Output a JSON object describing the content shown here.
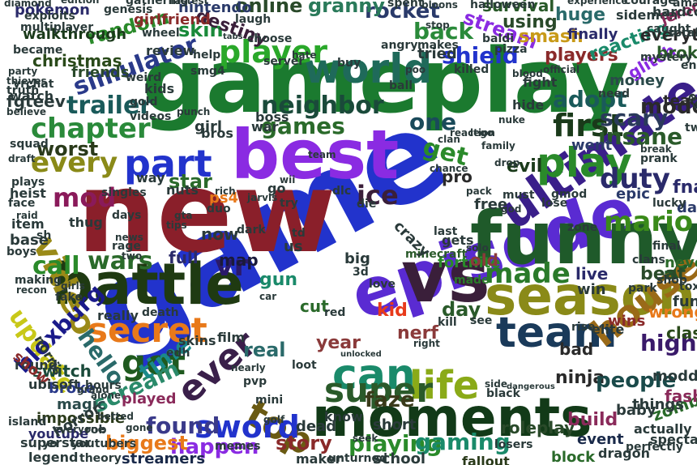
{
  "palette": {
    "background": "#ffffff",
    "green": "#1b7a2f",
    "dark_green": "#1f4d1a",
    "blue": "#2233cc",
    "purple": "#8a2be2",
    "maroon": "#8a1f2a",
    "dark_purple": "#3a1f4a",
    "orange": "#e8791a",
    "olive": "#9a8a18",
    "teal": "#1a6a7a",
    "indigo": "#3a1f8a"
  },
  "words": [
    {
      "text": "game",
      "color": "#2233cc"
    },
    {
      "text": "new",
      "color": "#8a1f2a"
    },
    {
      "text": "gameplay",
      "color": "#1b7a2f"
    },
    {
      "text": "best",
      "color": "#8a2be2"
    },
    {
      "text": "episode",
      "color": "#5a2bd2"
    },
    {
      "text": "vs",
      "color": "#3a1f3a"
    },
    {
      "text": "funny",
      "color": "#1f5a2a"
    },
    {
      "text": "battle",
      "color": "#1f3a12"
    },
    {
      "text": "moments",
      "color": "#123a18"
    },
    {
      "text": "season",
      "color": "#8a8a18"
    },
    {
      "text": "ultimate",
      "color": "#3a1f8a"
    },
    {
      "text": "world",
      "color": "#1f6a5a"
    },
    {
      "text": "part",
      "color": "#2233cc"
    },
    {
      "text": "team",
      "color": "#1a3a5a"
    },
    {
      "text": "secret",
      "color": "#e8791a"
    },
    {
      "text": "player",
      "color": "#2aa82a"
    },
    {
      "text": "play",
      "color": "#2a8a2a"
    },
    {
      "text": "video",
      "color": "#9a8a18"
    },
    {
      "text": "house",
      "color": "#9a6a18"
    },
    {
      "text": "got",
      "color": "#1f5a1f"
    },
    {
      "text": "top",
      "color": "#6a5a12"
    },
    {
      "text": "can",
      "color": "#1a8a6a"
    },
    {
      "text": "life",
      "color": "#8aaa18"
    },
    {
      "text": "ever",
      "color": "#3a1f4a"
    },
    {
      "text": "super",
      "color": "#2a5a2a"
    },
    {
      "text": "made",
      "color": "#2a7a2a"
    },
    {
      "text": "first",
      "color": "#1a3a1a"
    },
    {
      "text": "mod",
      "color": "#8a1a5a"
    },
    {
      "text": "neighbor",
      "color": "#1a4a3a"
    },
    {
      "text": "chapter",
      "color": "#2a8a3a"
    },
    {
      "text": "games",
      "color": "#2a6a2a"
    },
    {
      "text": "sword",
      "color": "#2233cc"
    },
    {
      "text": "trailer",
      "color": "#1a5a5a"
    },
    {
      "text": "simulator",
      "color": "#2a3a8a"
    },
    {
      "text": "shield",
      "color": "#2233cc"
    },
    {
      "text": "every",
      "color": "#8a8a18"
    },
    {
      "text": "adopt",
      "color": "#1a5a5a"
    },
    {
      "text": "mario",
      "color": "#3a8a1a"
    },
    {
      "text": "playing",
      "color": "#2a8a2a"
    },
    {
      "text": "gaming",
      "color": "#1a8a6a"
    },
    {
      "text": "update",
      "color": "#c8c818"
    },
    {
      "text": "call",
      "color": "#2a8a2a"
    },
    {
      "text": "hello",
      "color": "#2a6a6a"
    },
    {
      "text": "found",
      "color": "#3a3a8a"
    },
    {
      "text": "scream",
      "color": "#2a8a6a"
    },
    {
      "text": "time",
      "color": "#1a8a8a"
    },
    {
      "text": "story",
      "color": "#8a2a2a"
    },
    {
      "text": "bloxburg",
      "color": "#1a1a8a"
    },
    {
      "text": "wars",
      "color": "#2a6a2a"
    },
    {
      "text": "worst",
      "color": "#2a3a1a"
    },
    {
      "text": "duty",
      "color": "#2a2a6a"
    },
    {
      "text": "insane",
      "color": "#2a5a2a"
    },
    {
      "text": "scary",
      "color": "#2a3a5a"
    },
    {
      "text": "ice",
      "color": "#3a1f3a"
    },
    {
      "text": "get",
      "color": "#2a8a2a"
    },
    {
      "text": "back",
      "color": "#2a8a3a"
    },
    {
      "text": "rocket",
      "color": "#2a3a6a"
    },
    {
      "text": "one",
      "color": "#1a4a5a"
    },
    {
      "text": "online",
      "color": "#2a4a2a"
    },
    {
      "text": "granny",
      "color": "#2a7a5a"
    },
    {
      "text": "stream",
      "color": "#8a2be2"
    },
    {
      "text": "random",
      "color": "#2a8a2a"
    },
    {
      "text": "christmas",
      "color": "#2a4a1a"
    },
    {
      "text": "skin",
      "color": "#1a8a3a"
    },
    {
      "text": "destiny",
      "color": "#3a1f3a"
    },
    {
      "text": "smash",
      "color": "#c89a18"
    },
    {
      "text": "players",
      "color": "#8a2a2a"
    },
    {
      "text": "mode",
      "color": "#2a2a2a"
    },
    {
      "text": "using",
      "color": "#2a4a2a"
    },
    {
      "text": "survival",
      "color": "#2a5a2a"
    },
    {
      "text": "huge",
      "color": "#2a6a6a"
    },
    {
      "text": "nerf",
      "color": "#8a3a3a"
    },
    {
      "text": "kid",
      "color": "#e83a1a"
    },
    {
      "text": "day",
      "color": "#2a5a2a"
    },
    {
      "text": "high",
      "color": "#3a1a6a"
    },
    {
      "text": "ninja",
      "color": "#2a2a2a"
    },
    {
      "text": "people",
      "color": "#1a4a4a"
    },
    {
      "text": "faze",
      "color": "#3a3a1a"
    },
    {
      "text": "roleplay",
      "color": "#2a4a2a"
    },
    {
      "text": "happen",
      "color": "#8a2be2"
    },
    {
      "text": "biggest",
      "color": "#e8791a"
    },
    {
      "text": "fortnite",
      "color": "#2a8a2a"
    },
    {
      "text": "star",
      "color": "#2a6a2a"
    },
    {
      "text": "vr",
      "color": "#2a1a6a"
    },
    {
      "text": "real",
      "color": "#2a6a6a"
    },
    {
      "text": "live",
      "color": "#2a2a6a"
    },
    {
      "text": "beat",
      "color": "#2a4a2a"
    },
    {
      "text": "clash",
      "color": "#2a4a1a"
    },
    {
      "text": "wins",
      "color": "#8a2a2a"
    },
    {
      "text": "evil",
      "color": "#1a3a1a"
    },
    {
      "text": "went",
      "color": "#2a3a6a"
    },
    {
      "text": "map",
      "color": "#1a1a3a"
    },
    {
      "text": "gun",
      "color": "#1a8a6a"
    },
    {
      "text": "cut",
      "color": "#2a6a2a"
    },
    {
      "text": "year",
      "color": "#8a3a3a"
    },
    {
      "text": "bad",
      "color": "#2a2a2a"
    },
    {
      "text": "full",
      "color": "#2a2a6a"
    },
    {
      "text": "now",
      "color": "#2a3a3a"
    },
    {
      "text": "build",
      "color": "#8a2a5a"
    },
    {
      "text": "event",
      "color": "#1a2a4a"
    },
    {
      "text": "block",
      "color": "#2a6a2a"
    },
    {
      "text": "school",
      "color": "#2a3a3a"
    },
    {
      "text": "zombies",
      "color": "#2a6a2a"
    },
    {
      "text": "fashion",
      "color": "#8a2a5a"
    },
    {
      "text": "switch",
      "color": "#1a4a3a"
    },
    {
      "text": "impossible",
      "color": "#2a3a1a"
    },
    {
      "text": "youtube",
      "color": "#2a2a6a"
    },
    {
      "text": "streamers",
      "color": "#1a2a4a"
    },
    {
      "text": "magic",
      "color": "#2a4a4a"
    },
    {
      "text": "broke",
      "color": "#2a3a8a"
    },
    {
      "text": "made",
      "color": "#2a7a2a"
    },
    {
      "text": "minecraft",
      "color": "#2a5a2a"
    },
    {
      "text": "pokemon",
      "color": "#2a2a6a"
    },
    {
      "text": "nintendo",
      "color": "#2a3a6a"
    },
    {
      "text": "walkthrough",
      "color": "#1a3a1a"
    },
    {
      "text": "girlfriend",
      "color": "#8a2a2a"
    },
    {
      "text": "review",
      "color": "#2a3a3a"
    },
    {
      "text": "friends",
      "color": "#2a4a2a"
    },
    {
      "text": "tried",
      "color": "#2a3a3a"
    },
    {
      "text": "money",
      "color": "#2a4a4a"
    },
    {
      "text": "reacting",
      "color": "#1a8a6a"
    },
    {
      "text": "glitch",
      "color": "#8a2be2"
    },
    {
      "text": "broken",
      "color": "#2a5a2a"
    },
    {
      "text": "everything",
      "color": "#2a2a2a"
    },
    {
      "text": "sidemen",
      "color": "#2a3a3a"
    },
    {
      "text": "finally",
      "color": "#2a2a6a"
    },
    {
      "text": "jeromeast",
      "color": "#8a2a5a"
    },
    {
      "text": "fgteev",
      "color": "#2a3a3a"
    },
    {
      "text": "fnaf",
      "color": "#2a2a6a"
    },
    {
      "text": "dawn",
      "color": "#2a3a6a"
    },
    {
      "text": "epic",
      "color": "#2a3a6a"
    },
    {
      "text": "teacher",
      "color": "#2a2a2a"
    },
    {
      "text": "escape",
      "color": "#2a3a3a"
    },
    {
      "text": "wrong",
      "color": "#e8791a"
    },
    {
      "text": "never",
      "color": "#2a6a2a"
    },
    {
      "text": "toxic",
      "color": "#2a3a3a"
    },
    {
      "text": "twitch",
      "color": "#2a3a3a"
    },
    {
      "text": "pro",
      "color": "#2a2a2a"
    },
    {
      "text": "old",
      "color": "#8a3a3a"
    },
    {
      "text": "dead",
      "color": "#2a3a3a"
    },
    {
      "text": "fallout",
      "color": "#2a3a1a"
    },
    {
      "text": "know",
      "color": "#2a3a3a"
    },
    {
      "text": "short",
      "color": "#2a3a3a"
    },
    {
      "text": "hardcore",
      "color": "#2a3a3a"
    },
    {
      "text": "spectated",
      "color": "#2a3a3a"
    },
    {
      "text": "actually",
      "color": "#2a3a3a"
    },
    {
      "text": "dragon",
      "color": "#2a3a3a"
    },
    {
      "text": "gets",
      "color": "#2a3a3a"
    },
    {
      "text": "ps4",
      "color": "#e8791a"
    },
    {
      "text": "crazy",
      "color": "#2a3a3a"
    },
    {
      "text": "boss",
      "color": "#2a3a3a"
    },
    {
      "text": "war",
      "color": "#2a3a3a"
    },
    {
      "text": "girl",
      "color": "#2a3a3a"
    },
    {
      "text": "kids",
      "color": "#2a3a3a"
    },
    {
      "text": "film",
      "color": "#2a3a3a"
    },
    {
      "text": "skins",
      "color": "#2a3a3a"
    },
    {
      "text": "played",
      "color": "#8a2a5a"
    },
    {
      "text": "round",
      "color": "#2a3a3a"
    },
    {
      "text": "show",
      "color": "#8a2a2a"
    },
    {
      "text": "norris",
      "color": "#2a3a3a"
    },
    {
      "text": "horror",
      "color": "#2a3a3a"
    },
    {
      "text": "ubisoft",
      "color": "#2a3a3a"
    },
    {
      "text": "base",
      "color": "#2a3a3a"
    },
    {
      "text": "item",
      "color": "#2a3a3a"
    },
    {
      "text": "heist",
      "color": "#2a3a3a"
    },
    {
      "text": "plays",
      "color": "#2a3a3a"
    },
    {
      "text": "thug",
      "color": "#2a3a3a"
    },
    {
      "text": "nuts",
      "color": "#2a3a3a"
    },
    {
      "text": "way",
      "color": "#2a3a3a"
    },
    {
      "text": "gta",
      "color": "#2a3a3a"
    },
    {
      "text": "tips",
      "color": "#2a3a3a"
    },
    {
      "text": "fun",
      "color": "#2a3a3a"
    },
    {
      "text": "win",
      "color": "#2a3a3a"
    },
    {
      "text": "rise",
      "color": "#2a3a3a"
    },
    {
      "text": "elite",
      "color": "#2a3a3a"
    },
    {
      "text": "things",
      "color": "#2a3a3a"
    },
    {
      "text": "baby",
      "color": "#2a3a3a"
    },
    {
      "text": "modded",
      "color": "#2a3a3a"
    },
    {
      "text": "perfectly",
      "color": "#2a3a3a"
    },
    {
      "text": "zone",
      "color": "#2a3a3a"
    },
    {
      "text": "free",
      "color": "#2a3a3a"
    },
    {
      "text": "clans",
      "color": "#2a3a3a"
    },
    {
      "text": "lucky",
      "color": "#2a3a3a"
    },
    {
      "text": "hide",
      "color": "#2a3a3a"
    },
    {
      "text": "fight",
      "color": "#2a3a3a"
    },
    {
      "text": "need",
      "color": "#2a3a3a"
    },
    {
      "text": "mystery",
      "color": "#2a3a3a"
    },
    {
      "text": "caught",
      "color": "#2a3a3a"
    },
    {
      "text": "totally",
      "color": "#2a3a3a"
    },
    {
      "text": "ending",
      "color": "#2a3a3a"
    },
    {
      "text": "makes",
      "color": "#2a3a3a"
    },
    {
      "text": "angry",
      "color": "#2a3a3a"
    },
    {
      "text": "laugh",
      "color": "#2a3a3a"
    },
    {
      "text": "choose",
      "color": "#2a3a3a"
    },
    {
      "text": "tabs",
      "color": "#2a3a3a"
    },
    {
      "text": "vrchat",
      "color": "#2a3a3a"
    },
    {
      "text": "party",
      "color": "#2a3a3a"
    },
    {
      "text": "became",
      "color": "#2a3a3a"
    },
    {
      "text": "multiplayer",
      "color": "#2a3a3a"
    },
    {
      "text": "genesis",
      "color": "#2a3a3a"
    },
    {
      "text": "gathering",
      "color": "#2a3a3a"
    },
    {
      "text": "diamond",
      "color": "#2a3a3a"
    },
    {
      "text": "exploits",
      "color": "#2a3a3a"
    },
    {
      "text": "edition",
      "color": "#2a3a3a"
    },
    {
      "text": "fastest",
      "color": "#2a3a3a"
    },
    {
      "text": "spent",
      "color": "#2a3a3a"
    },
    {
      "text": "halloween",
      "color": "#2a3a3a"
    },
    {
      "text": "experience",
      "color": "#2a3a3a"
    },
    {
      "text": "courage",
      "color": "#2a3a3a"
    },
    {
      "text": "amazing",
      "color": "#2a3a3a"
    },
    {
      "text": "wheel",
      "color": "#2a3a3a"
    },
    {
      "text": "help",
      "color": "#2a3a3a"
    },
    {
      "text": "weird",
      "color": "#2a3a3a"
    },
    {
      "text": "server",
      "color": "#2a3a3a"
    },
    {
      "text": "buy",
      "color": "#2a3a3a"
    },
    {
      "text": "hate",
      "color": "#2a3a3a"
    },
    {
      "text": "stop",
      "color": "#2a3a3a"
    },
    {
      "text": "ball",
      "color": "#2a3a3a"
    },
    {
      "text": "poo",
      "color": "#2a3a3a"
    },
    {
      "text": "killed",
      "color": "#2a3a3a"
    },
    {
      "text": "official",
      "color": "#2a3a3a"
    },
    {
      "text": "blood",
      "color": "#2a3a3a"
    },
    {
      "text": "nuke",
      "color": "#2a3a3a"
    },
    {
      "text": "must",
      "color": "#2a3a3a"
    },
    {
      "text": "lose",
      "color": "#2a3a3a"
    },
    {
      "text": "gmod",
      "color": "#2a3a3a"
    },
    {
      "text": "god",
      "color": "#2a3a3a"
    },
    {
      "text": "pack",
      "color": "#2a3a3a"
    },
    {
      "text": "solo",
      "color": "#2a3a3a"
    },
    {
      "text": "last",
      "color": "#2a3a3a"
    },
    {
      "text": "days",
      "color": "#2a3a3a"
    },
    {
      "text": "news",
      "color": "#2a3a3a"
    },
    {
      "text": "rage",
      "color": "#2a3a3a"
    },
    {
      "text": "two",
      "color": "#2a3a3a"
    },
    {
      "text": "singles",
      "color": "#2a3a3a"
    },
    {
      "text": "duo",
      "color": "#2a3a3a"
    },
    {
      "text": "dark",
      "color": "#2a3a3a"
    },
    {
      "text": "try",
      "color": "#2a3a3a"
    },
    {
      "text": "go",
      "color": "#2a3a3a"
    },
    {
      "text": "wii",
      "color": "#2a3a3a"
    },
    {
      "text": "dlc",
      "color": "#2a3a3a"
    },
    {
      "text": "die",
      "color": "#2a3a3a"
    },
    {
      "text": "us",
      "color": "#2a3a3a"
    },
    {
      "text": "td",
      "color": "#2a3a3a"
    },
    {
      "text": "big",
      "color": "#2a3a3a"
    },
    {
      "text": "3d",
      "color": "#2a3a3a"
    },
    {
      "text": "love",
      "color": "#2a3a3a"
    },
    {
      "text": "red",
      "color": "#2a3a3a"
    },
    {
      "text": "car",
      "color": "#2a3a3a"
    },
    {
      "text": "pvp",
      "color": "#2a3a3a"
    },
    {
      "text": "loot",
      "color": "#2a3a3a"
    },
    {
      "text": "right",
      "color": "#2a3a3a"
    },
    {
      "text": "kill",
      "color": "#2a3a3a"
    },
    {
      "text": "see",
      "color": "#2a3a3a"
    },
    {
      "text": "golf",
      "color": "#2a3a3a"
    },
    {
      "text": "memes",
      "color": "#2a3a3a"
    },
    {
      "text": "mini",
      "color": "#2a3a3a"
    },
    {
      "text": "really",
      "color": "#2a3a3a"
    },
    {
      "text": "death",
      "color": "#2a3a3a"
    },
    {
      "text": "making",
      "color": "#2a3a3a"
    },
    {
      "text": "recon",
      "color": "#2a3a3a"
    },
    {
      "text": "girls",
      "color": "#2a3a3a"
    },
    {
      "text": "fake",
      "color": "#2a3a3a"
    },
    {
      "text": "theory",
      "color": "#2a3a3a"
    },
    {
      "text": "legend",
      "color": "#2a3a3a"
    },
    {
      "text": "superstar",
      "color": "#2a3a3a"
    },
    {
      "text": "everyone",
      "color": "#2a3a3a"
    },
    {
      "text": "gone",
      "color": "#2a3a3a"
    },
    {
      "text": "seek",
      "color": "#2a3a3a"
    },
    {
      "text": "maker",
      "color": "#2a3a3a"
    },
    {
      "text": "unturned",
      "color": "#2a3a3a"
    },
    {
      "text": "losers",
      "color": "#2a3a3a"
    },
    {
      "text": "yo",
      "color": "#2a3a3a"
    },
    {
      "text": "youtubers",
      "color": "#2a3a3a"
    },
    {
      "text": "rob",
      "color": "#2a3a3a"
    },
    {
      "text": "hours",
      "color": "#2a3a3a"
    },
    {
      "text": "alone",
      "color": "#2a3a3a"
    },
    {
      "text": "reaction",
      "color": "#2a3a3a"
    },
    {
      "text": "clan",
      "color": "#2a3a3a"
    },
    {
      "text": "chance",
      "color": "#2a3a3a"
    },
    {
      "text": "shop",
      "color": "#2a3a3a"
    },
    {
      "text": "final",
      "color": "#2a3a3a"
    },
    {
      "text": "park",
      "color": "#2a3a3a"
    },
    {
      "text": "lego",
      "color": "#2a3a3a"
    },
    {
      "text": "drop",
      "color": "#2a3a3a"
    },
    {
      "text": "face",
      "color": "#2a3a3a"
    },
    {
      "text": "boys",
      "color": "#2a3a3a"
    },
    {
      "text": "team",
      "color": "#2a3a3a"
    },
    {
      "text": "bros",
      "color": "#2a3a3a"
    },
    {
      "text": "videos",
      "color": "#2a3a3a"
    },
    {
      "text": "gold",
      "color": "#2a3a3a"
    },
    {
      "text": "truth",
      "color": "#2a3a3a"
    },
    {
      "text": "thieves",
      "color": "#2a3a3a"
    },
    {
      "text": "watch",
      "color": "#2a3a3a"
    },
    {
      "text": "believe",
      "color": "#2a3a3a"
    },
    {
      "text": "squad",
      "color": "#2a3a3a"
    },
    {
      "text": "draft",
      "color": "#2a3a3a"
    },
    {
      "text": "raid",
      "color": "#2a3a3a"
    },
    {
      "text": "smg4",
      "color": "#2a3a3a"
    },
    {
      "text": "punch",
      "color": "#2a3a3a"
    },
    {
      "text": "bloons",
      "color": "#2a3a3a"
    },
    {
      "text": "baldi",
      "color": "#2a3a3a"
    },
    {
      "text": "pizza",
      "color": "#2a3a3a"
    },
    {
      "text": "prank",
      "color": "#2a3a3a"
    },
    {
      "text": "break",
      "color": "#2a3a3a"
    },
    {
      "text": "family",
      "color": "#2a3a3a"
    },
    {
      "text": "jarvis",
      "color": "#2a3a3a"
    },
    {
      "text": "rich",
      "color": "#2a3a3a"
    },
    {
      "text": "grand",
      "color": "#2a3a3a"
    },
    {
      "text": "betted",
      "color": "#2a3a3a"
    },
    {
      "text": "edh",
      "color": "#2a3a3a"
    },
    {
      "text": "nearly",
      "color": "#2a3a3a"
    },
    {
      "text": "unlocked",
      "color": "#2a3a3a"
    },
    {
      "text": "dangerous",
      "color": "#2a3a3a"
    },
    {
      "text": "black",
      "color": "#2a3a3a"
    },
    {
      "text": "side",
      "color": "#2a3a3a"
    },
    {
      "text": "island",
      "color": "#2a3a3a"
    },
    {
      "text": "sh",
      "color": "#2a3a3a"
    }
  ]
}
